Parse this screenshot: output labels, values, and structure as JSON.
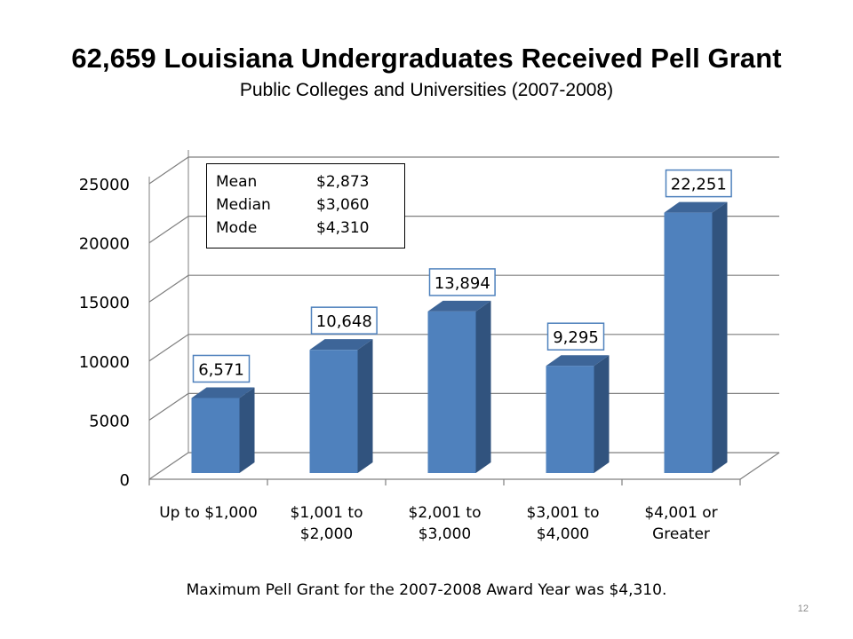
{
  "title": "62,659 Louisiana Undergraduates Received Pell Grant",
  "subtitle": "Public Colleges and Universities (2007-2008)",
  "stats": [
    {
      "label": "Mean",
      "value": "$2,873"
    },
    {
      "label": "Median",
      "value": "$3,060"
    },
    {
      "label": "Mode",
      "value": "$4,310"
    }
  ],
  "footnote": "Maximum Pell Grant for the 2007-2008  Award Year was $4,310.",
  "page_number": "12",
  "colors": {
    "bar_front": "#4f81bd",
    "bar_side": "#31537e",
    "bar_top": "#3d6598",
    "label_border": "#4f81bd",
    "grid": "#7f7f7f"
  },
  "chart_data": {
    "type": "bar",
    "style": "3d-column",
    "categories": [
      [
        "Up to $1,000"
      ],
      [
        "$1,001 to",
        "$2,000"
      ],
      [
        "$2,001 to",
        "$3,000"
      ],
      [
        "$3,001 to",
        "$4,000"
      ],
      [
        "$4,001 or",
        "Greater"
      ]
    ],
    "values": [
      6571,
      10648,
      13894,
      9295,
      22251
    ],
    "data_labels": [
      "6,571",
      "10,648",
      "13,894",
      "9,295",
      "22,251"
    ],
    "y_ticks": [
      "0",
      "5000",
      "10000",
      "15000",
      "20000",
      "25000"
    ],
    "ylim": [
      0,
      25000
    ],
    "grid": true,
    "legend": "none",
    "title": "",
    "xlabel": "",
    "ylabel": ""
  }
}
